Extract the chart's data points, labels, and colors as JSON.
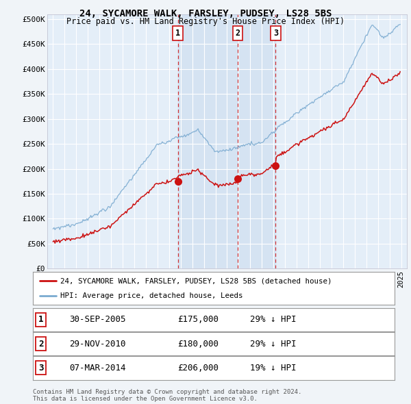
{
  "title1": "24, SYCAMORE WALK, FARSLEY, PUDSEY, LS28 5BS",
  "title2": "Price paid vs. HM Land Registry's House Price Index (HPI)",
  "ylabel_ticks": [
    "£0",
    "£50K",
    "£100K",
    "£150K",
    "£200K",
    "£250K",
    "£300K",
    "£350K",
    "£400K",
    "£450K",
    "£500K"
  ],
  "ytick_values": [
    0,
    50000,
    100000,
    150000,
    200000,
    250000,
    300000,
    350000,
    400000,
    450000,
    500000
  ],
  "ylim": [
    0,
    510000
  ],
  "background_color": "#f0f4f8",
  "plot_bg_color": "#e4eef8",
  "shade_color": "#d0dff0",
  "grid_color": "#ffffff",
  "hpi_color": "#7aaad0",
  "price_color": "#cc1111",
  "sale1_x": 2005.75,
  "sale1_price": 175000,
  "sale2_x": 2010.92,
  "sale2_price": 180000,
  "sale3_x": 2014.19,
  "sale3_price": 206000,
  "legend_line1": "24, SYCAMORE WALK, FARSLEY, PUDSEY, LS28 5BS (detached house)",
  "legend_line2": "HPI: Average price, detached house, Leeds",
  "table_rows": [
    [
      "1",
      "30-SEP-2005",
      "£175,000",
      "29% ↓ HPI"
    ],
    [
      "2",
      "29-NOV-2010",
      "£180,000",
      "29% ↓ HPI"
    ],
    [
      "3",
      "07-MAR-2014",
      "£206,000",
      "19% ↓ HPI"
    ]
  ],
  "footnote1": "Contains HM Land Registry data © Crown copyright and database right 2024.",
  "footnote2": "This data is licensed under the Open Government Licence v3.0.",
  "xmin": 1995,
  "xmax": 2025
}
